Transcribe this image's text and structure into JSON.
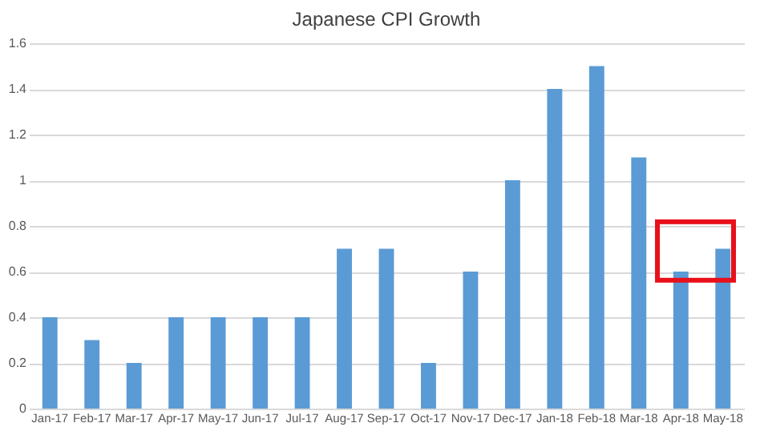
{
  "chart_data": {
    "type": "bar",
    "title": "Japanese CPI Growth",
    "categories": [
      "Jan-17",
      "Feb-17",
      "Mar-17",
      "Apr-17",
      "May-17",
      "Jun-17",
      "Jul-17",
      "Aug-17",
      "Sep-17",
      "Oct-17",
      "Nov-17",
      "Dec-17",
      "Jan-18",
      "Feb-18",
      "Mar-18",
      "Apr-18",
      "May-18"
    ],
    "values": [
      0.4,
      0.3,
      0.2,
      0.4,
      0.4,
      0.4,
      0.4,
      0.7,
      0.7,
      0.2,
      0.6,
      1.0,
      1.4,
      1.5,
      1.1,
      0.6,
      0.7
    ],
    "color": "#5b9bd5",
    "ylim": [
      0,
      1.6
    ],
    "yticks": [
      0,
      0.2,
      0.4,
      0.6,
      0.8,
      1,
      1.2,
      1.4,
      1.6
    ],
    "grid": "y"
  }
}
